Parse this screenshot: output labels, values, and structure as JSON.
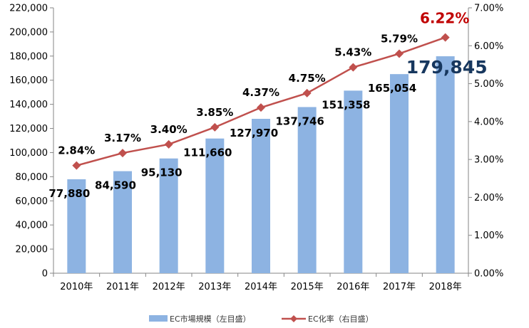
{
  "chart_data": {
    "type": "bar",
    "categories": [
      "2010年",
      "2011年",
      "2012年",
      "2013年",
      "2014年",
      "2015年",
      "2016年",
      "2017年",
      "2018年"
    ],
    "series": [
      {
        "name": "EC市場規模（左目盛）",
        "type": "bar",
        "axis": "left",
        "values": [
          77880,
          84590,
          95130,
          111660,
          127970,
          137746,
          151358,
          165054,
          179845
        ],
        "labels": [
          "77,880",
          "84,590",
          "95,130",
          "111,660",
          "127,970",
          "137,746",
          "151,358",
          "165,054",
          "179,845"
        ],
        "color": "#8DB3E2"
      },
      {
        "name": "EC化率（右目盛）",
        "type": "line",
        "axis": "right",
        "values": [
          2.84,
          3.17,
          3.4,
          3.85,
          4.37,
          4.75,
          5.43,
          5.79,
          6.22
        ],
        "labels": [
          "2.84%",
          "3.17%",
          "3.40%",
          "3.85%",
          "4.37%",
          "4.75%",
          "5.43%",
          "5.79%",
          "6.22%"
        ],
        "color": "#C0504D"
      }
    ],
    "y_left": {
      "range": [
        0,
        220000
      ],
      "ticks": [
        "0",
        "20,000",
        "40,000",
        "60,000",
        "80,000",
        "100,000",
        "120,000",
        "140,000",
        "160,000",
        "180,000",
        "200,000",
        "220,000"
      ]
    },
    "y_right": {
      "range": [
        0,
        7
      ],
      "ticks": [
        "0.00%",
        "1.00%",
        "2.00%",
        "3.00%",
        "4.00%",
        "5.00%",
        "6.00%",
        "7.00%"
      ]
    },
    "highlight": {
      "bar_label_color": "#17375E",
      "line_label_color": "#C00000"
    },
    "grid": false,
    "legend": "bottom"
  }
}
